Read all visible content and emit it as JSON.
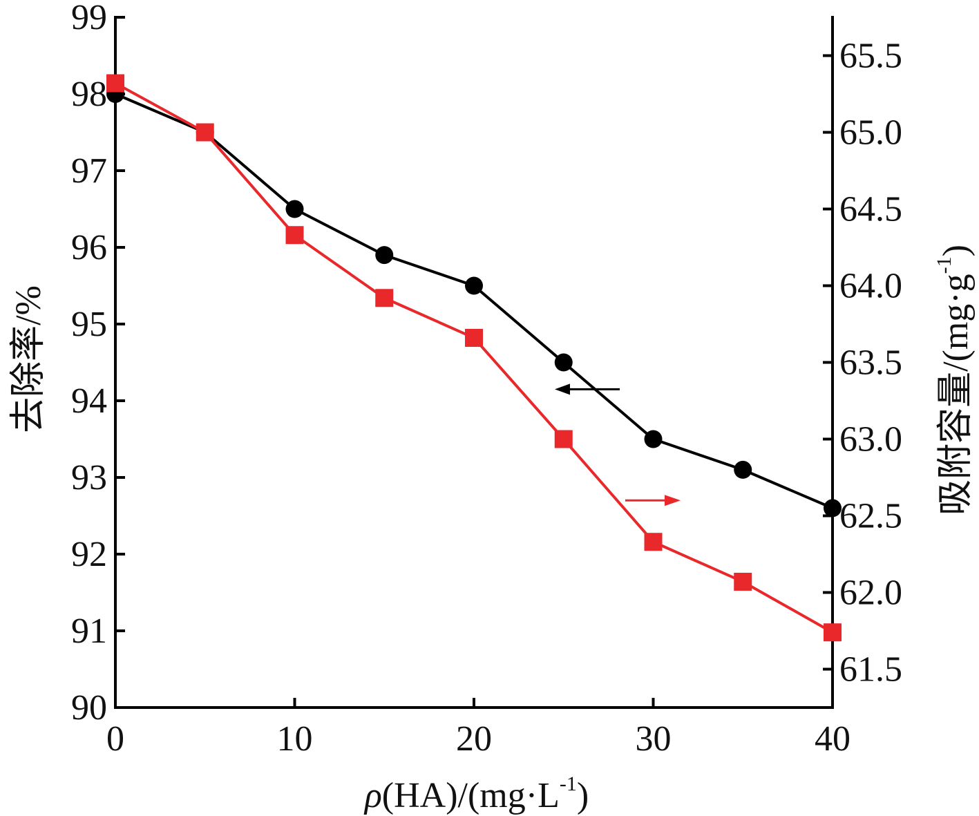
{
  "chart_data": {
    "type": "line",
    "x": [
      0,
      5,
      10,
      15,
      20,
      25,
      30,
      35,
      40
    ],
    "xlim": [
      0,
      40
    ],
    "xticks": [
      0,
      10,
      20,
      30,
      40
    ],
    "xlabel": {
      "rho": "ρ",
      "pre": "(HA)/(mg·L",
      "sup": "-1",
      "post": ")"
    },
    "y_left": {
      "label": "去除率/%",
      "lim": [
        90,
        99
      ],
      "ticks": [
        90,
        91,
        92,
        93,
        94,
        95,
        96,
        97,
        98,
        99
      ]
    },
    "y_right": {
      "label_pre": "吸附容量/(mg·g",
      "label_sup": "-1",
      "label_post": ")",
      "lim": [
        61.25,
        65.75
      ],
      "ticks": [
        "61.5",
        "62.0",
        "62.5",
        "63.0",
        "63.5",
        "64.0",
        "64.5",
        "65.0",
        "65.5"
      ]
    },
    "series": [
      {
        "axis": "left",
        "marker": "circle",
        "color": "#000000",
        "values": [
          98.0,
          97.5,
          96.5,
          95.9,
          95.5,
          94.5,
          93.5,
          93.1,
          92.6
        ]
      },
      {
        "axis": "right",
        "marker": "square",
        "color": "#e8282b",
        "values": [
          65.32,
          65.0,
          64.33,
          63.92,
          63.66,
          63.0,
          62.33,
          62.07,
          61.74
        ]
      }
    ],
    "annotations": [
      {
        "type": "arrow",
        "direction": "left",
        "color": "#000000",
        "series": 0
      },
      {
        "type": "arrow",
        "direction": "right",
        "color": "#e8282b",
        "series": 1
      }
    ],
    "grid": false
  }
}
